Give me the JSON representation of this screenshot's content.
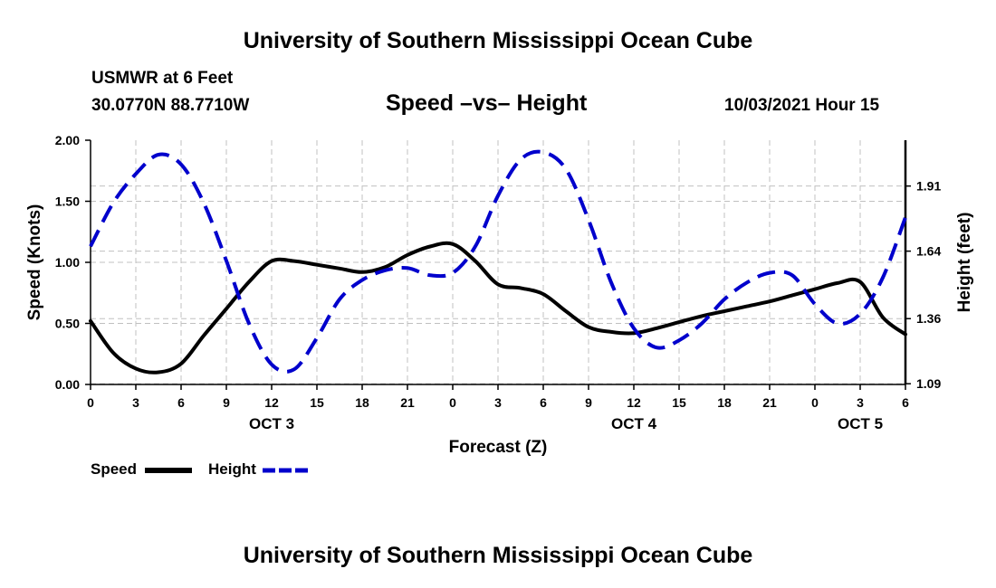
{
  "header": {
    "top_title": "University of Southern Mississippi Ocean Cube",
    "bottom_title": "University of Southern Mississippi Ocean Cube",
    "station_name": "USMWR at 6 Feet",
    "station_coords": "30.0770N  88.7710W",
    "chart_title": "Speed –vs– Height",
    "date": "10/03/2021 Hour 15"
  },
  "chart_data": {
    "type": "line",
    "title": "Speed –vs– Height",
    "xlabel": "Forecast (Z)",
    "ylabel": "Speed (Knots)",
    "y2label": "Height (feet)",
    "grid": true,
    "x_range": [
      0,
      54
    ],
    "x_ticks": [
      0,
      3,
      6,
      9,
      12,
      15,
      18,
      21,
      24,
      27,
      30,
      33,
      36,
      39,
      42,
      45,
      48,
      51,
      54
    ],
    "x_tick_labels": [
      "0",
      "3",
      "6",
      "9",
      "12",
      "15",
      "18",
      "21",
      "0",
      "3",
      "6",
      "9",
      "12",
      "15",
      "18",
      "21",
      "0",
      "3",
      "6"
    ],
    "day_labels": [
      {
        "x": 12,
        "label": "OCT 3"
      },
      {
        "x": 36,
        "label": "OCT 4"
      },
      {
        "x": 51,
        "label": "OCT 5"
      }
    ],
    "y_range": [
      0,
      2.0
    ],
    "y_ticks": [
      0,
      0.5,
      1.0,
      1.5,
      2.0
    ],
    "y_tick_labels": [
      "0.00",
      "0.50",
      "1.00",
      "1.50",
      "2.00"
    ],
    "y2_range": [
      1.087,
      2.1
    ],
    "y2_ticks": [
      1.09,
      1.36,
      1.64,
      1.91
    ],
    "y2_tick_labels": [
      "1.09",
      "1.36",
      "1.64",
      "1.91"
    ],
    "series": [
      {
        "name": "Speed",
        "axis": "left",
        "color": "#000000",
        "style": "solid",
        "x": [
          0,
          1.5,
          3,
          4.5,
          6,
          7.5,
          9,
          10.5,
          12,
          13.5,
          15,
          16.5,
          18,
          19.5,
          21,
          22.5,
          24,
          25.5,
          27,
          28.5,
          30,
          31.5,
          33,
          34.5,
          36,
          37.5,
          39,
          40.5,
          42,
          43.5,
          45,
          46.5,
          48,
          49.5,
          51,
          52.5,
          54
        ],
        "values": [
          0.52,
          0.26,
          0.13,
          0.1,
          0.17,
          0.4,
          0.62,
          0.84,
          1.01,
          1.01,
          0.98,
          0.95,
          0.92,
          0.96,
          1.06,
          1.13,
          1.15,
          1.01,
          0.82,
          0.79,
          0.74,
          0.6,
          0.47,
          0.43,
          0.42,
          0.46,
          0.51,
          0.56,
          0.6,
          0.64,
          0.68,
          0.73,
          0.78,
          0.83,
          0.84,
          0.55,
          0.41
        ]
      },
      {
        "name": "Height",
        "axis": "right",
        "color": "#0000cc",
        "style": "dashed",
        "x": [
          0,
          1.5,
          3,
          4.5,
          6,
          7.5,
          9,
          10.5,
          12,
          13.5,
          15,
          16.5,
          18,
          19.5,
          21,
          22.5,
          24,
          25.5,
          27,
          28.5,
          30,
          31.5,
          33,
          34.5,
          36,
          37.5,
          39,
          40.5,
          42,
          43.5,
          45,
          46.5,
          48,
          49.5,
          51,
          52.5,
          54
        ],
        "values": [
          1.66,
          1.84,
          1.96,
          2.04,
          2.0,
          1.84,
          1.6,
          1.34,
          1.17,
          1.15,
          1.28,
          1.44,
          1.52,
          1.56,
          1.57,
          1.54,
          1.55,
          1.66,
          1.87,
          2.02,
          2.05,
          1.98,
          1.77,
          1.51,
          1.32,
          1.24,
          1.27,
          1.34,
          1.44,
          1.51,
          1.55,
          1.54,
          1.42,
          1.34,
          1.38,
          1.53,
          1.78
        ]
      }
    ]
  },
  "legend": {
    "speed_label": "Speed",
    "height_label": "Height"
  }
}
